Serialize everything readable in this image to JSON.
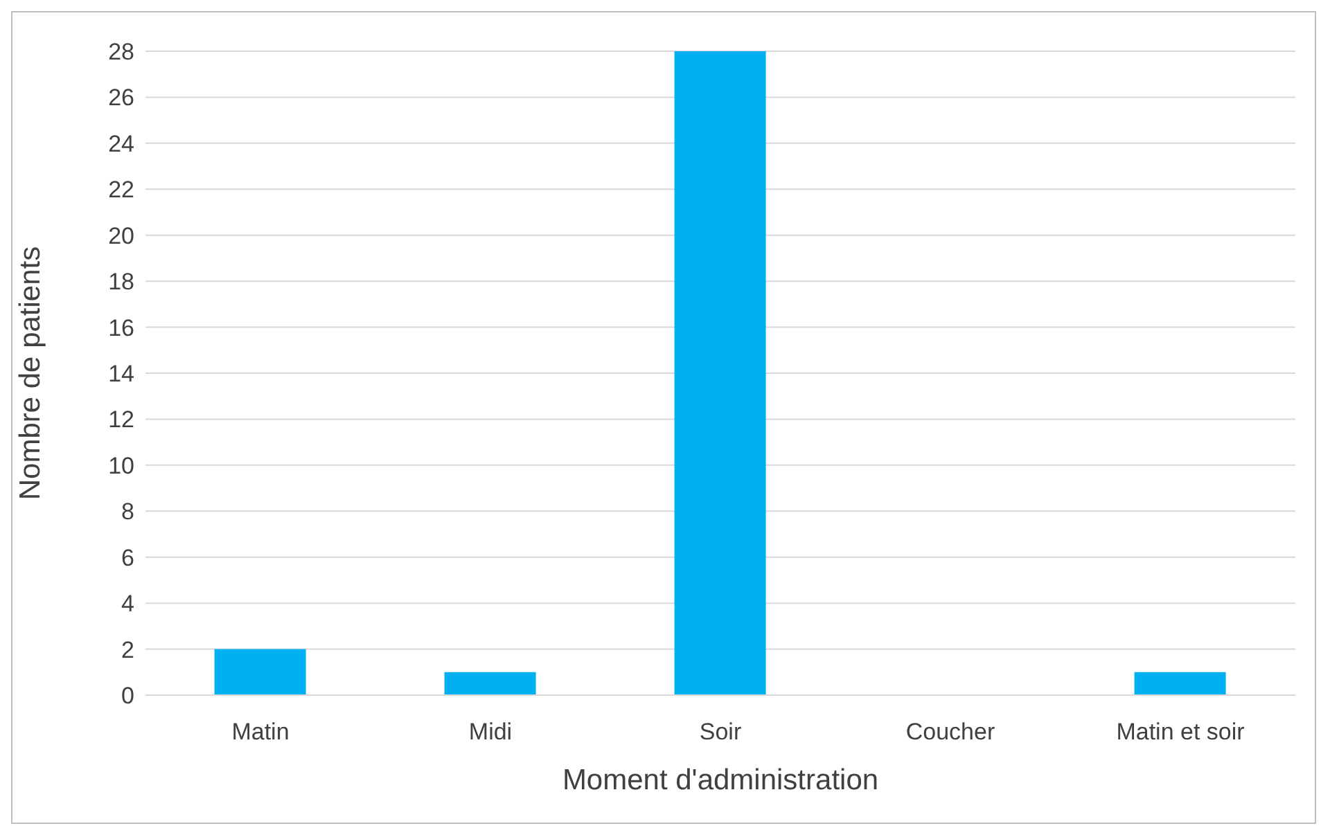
{
  "chart_data": {
    "type": "bar",
    "xlabel": "Moment d'administration",
    "ylabel": "Nombre de patients",
    "categories": [
      "Matin",
      "Midi",
      "Soir",
      "Coucher",
      "Matin et soir"
    ],
    "values": [
      2,
      1,
      28,
      0,
      1
    ],
    "color": "#00b0f0",
    "ylim": [
      0,
      28
    ],
    "yticks": [
      0,
      2,
      4,
      6,
      8,
      10,
      12,
      14,
      16,
      18,
      20,
      22,
      24,
      26,
      28
    ],
    "grid": "y",
    "legend": false
  }
}
